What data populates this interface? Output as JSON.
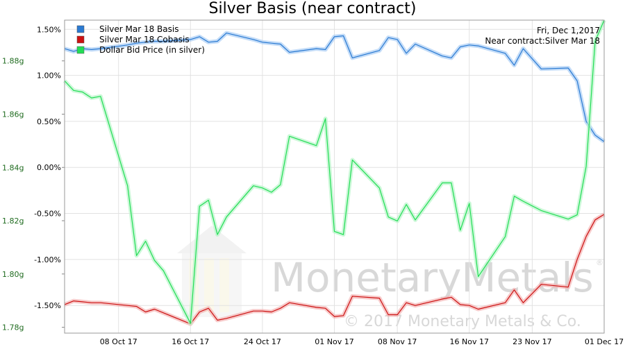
{
  "chart_data": {
    "type": "line",
    "title": "Silver Basis (near contract)",
    "annotation": {
      "date": "Fri, Dec 1,2017",
      "contract": "Near contract:Silver Mar 18"
    },
    "watermark": {
      "brand": "MonetaryMetals",
      "registered": "®",
      "copyright": "© 2017 Monetary Metals & Co."
    },
    "x_range": [
      "2017-10-02",
      "2017-12-01"
    ],
    "x_ticks": [
      {
        "date": "2017-10-08",
        "label": "08 Oct 17"
      },
      {
        "date": "2017-10-16",
        "label": "16 Oct 17"
      },
      {
        "date": "2017-10-24",
        "label": "24 Oct 17"
      },
      {
        "date": "2017-11-01",
        "label": "01 Nov 17"
      },
      {
        "date": "2017-11-08",
        "label": "08 Nov 17"
      },
      {
        "date": "2017-11-16",
        "label": "16 Nov 17"
      },
      {
        "date": "2017-11-23",
        "label": "23 Nov 17"
      },
      {
        "date": "2017-12-01",
        "label": "01 Dec 17"
      }
    ],
    "y_right": {
      "range": [
        -1.8,
        1.6
      ],
      "ticks": [
        {
          "v": 1.5,
          "label": "1.50%"
        },
        {
          "v": 1.0,
          "label": "1.00%"
        },
        {
          "v": 0.5,
          "label": "0.50%"
        },
        {
          "v": 0.0,
          "label": "0.00%"
        },
        {
          "v": -0.5,
          "label": "-0.50%"
        },
        {
          "v": -1.0,
          "label": "-1.00%"
        },
        {
          "v": -1.5,
          "label": "-1.50%"
        }
      ]
    },
    "y_left": {
      "range": [
        1.7778,
        1.8953
      ],
      "ticks": [
        {
          "v": 1.88,
          "label": "1.88g"
        },
        {
          "v": 1.86,
          "label": "1.86g"
        },
        {
          "v": 1.84,
          "label": "1.84g"
        },
        {
          "v": 1.82,
          "label": "1.82g"
        },
        {
          "v": 1.8,
          "label": "1.80g"
        },
        {
          "v": 1.78,
          "label": "1.78g"
        }
      ]
    },
    "grid": true,
    "legend_position": "top-left",
    "series": [
      {
        "name": "Silver Mar 18 Basis",
        "axis": "right",
        "color": "#2a7ad2",
        "points": [
          [
            "2017-10-02",
            1.29
          ],
          [
            "2017-10-03",
            1.26
          ],
          [
            "2017-10-04",
            1.29
          ],
          [
            "2017-10-05",
            1.28
          ],
          [
            "2017-10-06",
            1.29
          ],
          [
            "2017-10-09",
            1.33
          ],
          [
            "2017-10-10",
            1.35
          ],
          [
            "2017-10-11",
            1.36
          ],
          [
            "2017-10-12",
            1.37
          ],
          [
            "2017-10-13",
            1.37
          ],
          [
            "2017-10-16",
            1.39
          ],
          [
            "2017-10-17",
            1.42
          ],
          [
            "2017-10-18",
            1.36
          ],
          [
            "2017-10-19",
            1.37
          ],
          [
            "2017-10-20",
            1.46
          ],
          [
            "2017-10-23",
            1.39
          ],
          [
            "2017-10-24",
            1.36
          ],
          [
            "2017-10-25",
            1.35
          ],
          [
            "2017-10-26",
            1.34
          ],
          [
            "2017-10-27",
            1.25
          ],
          [
            "2017-10-30",
            1.29
          ],
          [
            "2017-10-31",
            1.28
          ],
          [
            "2017-11-01",
            1.42
          ],
          [
            "2017-11-02",
            1.43
          ],
          [
            "2017-11-03",
            1.19
          ],
          [
            "2017-11-06",
            1.27
          ],
          [
            "2017-11-07",
            1.41
          ],
          [
            "2017-11-08",
            1.39
          ],
          [
            "2017-11-09",
            1.24
          ],
          [
            "2017-11-10",
            1.34
          ],
          [
            "2017-11-13",
            1.21
          ],
          [
            "2017-11-14",
            1.19
          ],
          [
            "2017-11-15",
            1.31
          ],
          [
            "2017-11-16",
            1.33
          ],
          [
            "2017-11-17",
            1.32
          ],
          [
            "2017-11-20",
            1.24
          ],
          [
            "2017-11-21",
            1.11
          ],
          [
            "2017-11-22",
            1.29
          ],
          [
            "2017-11-24",
            1.07
          ],
          [
            "2017-11-27",
            1.08
          ],
          [
            "2017-11-28",
            0.94
          ],
          [
            "2017-11-29",
            0.5
          ],
          [
            "2017-11-30",
            0.35
          ],
          [
            "2017-12-01",
            0.28
          ]
        ]
      },
      {
        "name": "Silver Mar 18 Cobasis",
        "axis": "right",
        "color": "#cc1111",
        "points": [
          [
            "2017-10-02",
            -1.49
          ],
          [
            "2017-10-03",
            -1.45
          ],
          [
            "2017-10-04",
            -1.46
          ],
          [
            "2017-10-05",
            -1.47
          ],
          [
            "2017-10-06",
            -1.47
          ],
          [
            "2017-10-09",
            -1.5
          ],
          [
            "2017-10-10",
            -1.51
          ],
          [
            "2017-10-11",
            -1.57
          ],
          [
            "2017-10-12",
            -1.54
          ],
          [
            "2017-10-13",
            -1.58
          ],
          [
            "2017-10-16",
            -1.7
          ],
          [
            "2017-10-17",
            -1.57
          ],
          [
            "2017-10-18",
            -1.53
          ],
          [
            "2017-10-19",
            -1.66
          ],
          [
            "2017-10-20",
            -1.64
          ],
          [
            "2017-10-23",
            -1.56
          ],
          [
            "2017-10-24",
            -1.56
          ],
          [
            "2017-10-25",
            -1.57
          ],
          [
            "2017-10-26",
            -1.53
          ],
          [
            "2017-10-27",
            -1.47
          ],
          [
            "2017-10-30",
            -1.52
          ],
          [
            "2017-10-31",
            -1.53
          ],
          [
            "2017-11-01",
            -1.62
          ],
          [
            "2017-11-02",
            -1.61
          ],
          [
            "2017-11-03",
            -1.4
          ],
          [
            "2017-11-06",
            -1.42
          ],
          [
            "2017-11-07",
            -1.6
          ],
          [
            "2017-11-08",
            -1.6
          ],
          [
            "2017-11-09",
            -1.47
          ],
          [
            "2017-11-10",
            -1.5
          ],
          [
            "2017-11-13",
            -1.43
          ],
          [
            "2017-11-14",
            -1.41
          ],
          [
            "2017-11-15",
            -1.49
          ],
          [
            "2017-11-16",
            -1.5
          ],
          [
            "2017-11-17",
            -1.54
          ],
          [
            "2017-11-20",
            -1.47
          ],
          [
            "2017-11-21",
            -1.33
          ],
          [
            "2017-11-22",
            -1.47
          ],
          [
            "2017-11-24",
            -1.27
          ],
          [
            "2017-11-27",
            -1.3
          ],
          [
            "2017-11-28",
            -1.0
          ],
          [
            "2017-11-29",
            -0.75
          ],
          [
            "2017-11-30",
            -0.57
          ],
          [
            "2017-12-01",
            -0.51
          ]
        ]
      },
      {
        "name": "Dollar Bid Price (in silver)",
        "axis": "left",
        "color": "#22dd55",
        "points": [
          [
            "2017-10-02",
            1.8725
          ],
          [
            "2017-10-03",
            1.8689
          ],
          [
            "2017-10-04",
            1.8683
          ],
          [
            "2017-10-05",
            1.8661
          ],
          [
            "2017-10-06",
            1.8667
          ],
          [
            "2017-10-09",
            1.8331
          ],
          [
            "2017-10-10",
            1.8069
          ],
          [
            "2017-10-11",
            1.8123
          ],
          [
            "2017-10-12",
            1.8051
          ],
          [
            "2017-10-13",
            1.8012
          ],
          [
            "2017-10-16",
            1.7815
          ],
          [
            "2017-10-17",
            1.8254
          ],
          [
            "2017-10-18",
            1.8277
          ],
          [
            "2017-10-19",
            1.8148
          ],
          [
            "2017-10-20",
            1.8214
          ],
          [
            "2017-10-23",
            1.8331
          ],
          [
            "2017-10-24",
            1.8323
          ],
          [
            "2017-10-25",
            1.8307
          ],
          [
            "2017-10-26",
            1.8335
          ],
          [
            "2017-10-27",
            1.8517
          ],
          [
            "2017-10-30",
            1.8482
          ],
          [
            "2017-10-31",
            1.8583
          ],
          [
            "2017-11-01",
            1.816
          ],
          [
            "2017-11-02",
            1.8148
          ],
          [
            "2017-11-03",
            1.8428
          ],
          [
            "2017-11-06",
            1.8323
          ],
          [
            "2017-11-07",
            1.8214
          ],
          [
            "2017-11-08",
            1.8199
          ],
          [
            "2017-11-09",
            1.8261
          ],
          [
            "2017-11-10",
            1.8203
          ],
          [
            "2017-11-13",
            1.8342
          ],
          [
            "2017-11-14",
            1.8342
          ],
          [
            "2017-11-15",
            1.8164
          ],
          [
            "2017-11-16",
            1.8265
          ],
          [
            "2017-11-17",
            1.799
          ],
          [
            "2017-11-20",
            1.814
          ],
          [
            "2017-11-21",
            1.8292
          ],
          [
            "2017-11-22",
            1.8273
          ],
          [
            "2017-11-24",
            1.8238
          ],
          [
            "2017-11-27",
            1.8206
          ],
          [
            "2017-11-28",
            1.8222
          ],
          [
            "2017-11-29",
            1.8404
          ],
          [
            "2017-11-30",
            1.8874
          ],
          [
            "2017-12-01",
            1.8953
          ]
        ]
      }
    ]
  }
}
